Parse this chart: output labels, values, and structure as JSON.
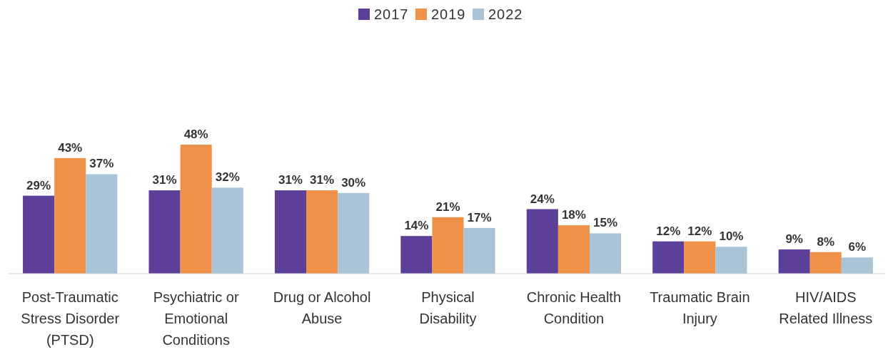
{
  "chart_data": {
    "type": "bar",
    "categories": [
      "Post-Traumatic Stress Disorder (PTSD)",
      "Psychiatric or Emotional Conditions",
      "Drug or Alcohol Abuse",
      "Physical Disability",
      "Chronic Health Condition",
      "Traumatic Brain Injury",
      "HIV/AIDS Related Illness"
    ],
    "series": [
      {
        "name": "2017",
        "color": "#5b3f99",
        "values": [
          29,
          31,
          31,
          14,
          24,
          12,
          9
        ],
        "value_labels": [
          "29%",
          "31%",
          "31%",
          "14%",
          "24%",
          "12%",
          "9%"
        ]
      },
      {
        "name": "2019",
        "color": "#f0914a",
        "values": [
          43,
          48,
          31,
          21,
          18,
          12,
          8
        ],
        "value_labels": [
          "43%",
          "48%",
          "31%",
          "21%",
          "18%",
          "12%",
          "8%"
        ]
      },
      {
        "name": "2022",
        "color": "#a8c4d6",
        "values": [
          37,
          32,
          30,
          17,
          15,
          10,
          6
        ],
        "value_labels": [
          "37%",
          "32%",
          "30%",
          "17%",
          "15%",
          "10%",
          "6%"
        ]
      }
    ],
    "legend": "top"
  }
}
